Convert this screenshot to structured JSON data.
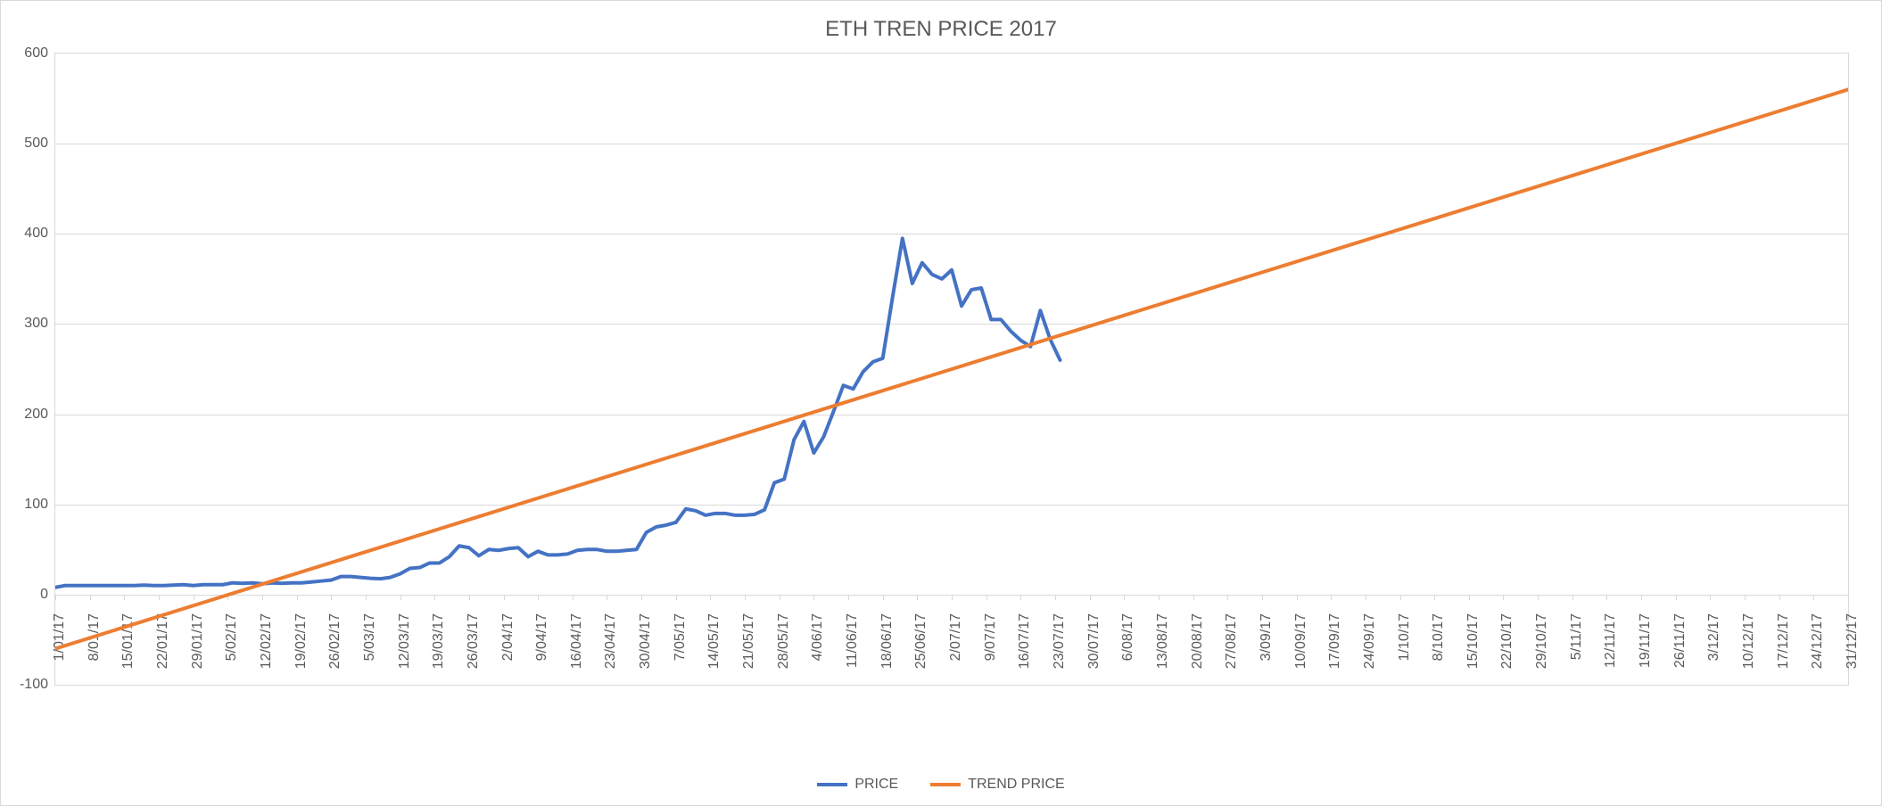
{
  "chart": {
    "type": "line",
    "title": "ETH TREN PRICE 2017",
    "title_fontsize": 24,
    "title_color": "#595959",
    "background_color": "#ffffff",
    "border_color": "#d9d9d9",
    "grid_color": "#d9d9d9",
    "axis_label_color": "#595959",
    "axis_label_fontsize": 16,
    "ylim": [
      -100,
      600
    ],
    "ytick_step": 100,
    "yticks": [
      -100,
      0,
      100,
      200,
      300,
      400,
      500,
      600
    ],
    "x_categories": [
      "1/01/17",
      "8/01/17",
      "15/01/17",
      "22/01/17",
      "29/01/17",
      "5/02/17",
      "12/02/17",
      "19/02/17",
      "26/02/17",
      "5/03/17",
      "12/03/17",
      "19/03/17",
      "26/03/17",
      "2/04/17",
      "9/04/17",
      "16/04/17",
      "23/04/17",
      "30/04/17",
      "7/05/17",
      "14/05/17",
      "21/05/17",
      "28/05/17",
      "4/06/17",
      "11/06/17",
      "18/06/17",
      "25/06/17",
      "2/07/17",
      "9/07/17",
      "16/07/17",
      "23/07/17",
      "30/07/17",
      "6/08/17",
      "13/08/17",
      "20/08/17",
      "27/08/17",
      "3/09/17",
      "10/09/17",
      "17/09/17",
      "24/09/17",
      "1/10/17",
      "8/10/17",
      "15/10/17",
      "22/10/17",
      "29/10/17",
      "5/11/17",
      "12/11/17",
      "19/11/17",
      "26/11/17",
      "3/12/17",
      "10/12/17",
      "17/12/17",
      "24/12/17",
      "31/12/17"
    ],
    "x_day_span": 364,
    "series": [
      {
        "name": "PRICE",
        "color": "#4472c4",
        "line_width": 4,
        "points": [
          [
            0,
            8
          ],
          [
            2,
            10
          ],
          [
            4,
            10
          ],
          [
            6,
            10
          ],
          [
            8,
            10
          ],
          [
            10,
            10
          ],
          [
            12,
            10
          ],
          [
            14,
            10
          ],
          [
            16,
            10
          ],
          [
            18,
            10.5
          ],
          [
            20,
            10
          ],
          [
            22,
            10
          ],
          [
            24,
            10.5
          ],
          [
            26,
            11
          ],
          [
            28,
            10
          ],
          [
            30,
            11
          ],
          [
            32,
            11
          ],
          [
            34,
            11
          ],
          [
            36,
            13
          ],
          [
            38,
            12.5
          ],
          [
            40,
            13
          ],
          [
            42,
            12
          ],
          [
            44,
            13
          ],
          [
            46,
            12.5
          ],
          [
            48,
            13
          ],
          [
            50,
            13
          ],
          [
            52,
            14
          ],
          [
            54,
            15
          ],
          [
            56,
            16
          ],
          [
            58,
            20
          ],
          [
            60,
            20
          ],
          [
            62,
            19
          ],
          [
            64,
            18
          ],
          [
            66,
            17.5
          ],
          [
            68,
            19
          ],
          [
            70,
            23
          ],
          [
            72,
            29
          ],
          [
            74,
            30
          ],
          [
            76,
            35
          ],
          [
            78,
            35
          ],
          [
            80,
            42
          ],
          [
            82,
            54
          ],
          [
            84,
            52
          ],
          [
            86,
            43
          ],
          [
            88,
            50
          ],
          [
            90,
            49
          ],
          [
            92,
            51
          ],
          [
            94,
            52
          ],
          [
            96,
            42
          ],
          [
            98,
            48
          ],
          [
            100,
            44
          ],
          [
            102,
            44
          ],
          [
            104,
            45
          ],
          [
            106,
            49
          ],
          [
            108,
            50
          ],
          [
            110,
            50
          ],
          [
            112,
            48
          ],
          [
            114,
            48
          ],
          [
            116,
            49
          ],
          [
            118,
            50
          ],
          [
            120,
            69
          ],
          [
            122,
            75
          ],
          [
            124,
            77
          ],
          [
            126,
            80
          ],
          [
            128,
            95
          ],
          [
            130,
            93
          ],
          [
            132,
            88
          ],
          [
            134,
            90
          ],
          [
            136,
            90
          ],
          [
            138,
            88
          ],
          [
            140,
            88
          ],
          [
            142,
            89
          ],
          [
            144,
            94
          ],
          [
            146,
            124
          ],
          [
            148,
            128
          ],
          [
            150,
            172
          ],
          [
            152,
            192
          ],
          [
            154,
            157
          ],
          [
            156,
            175
          ],
          [
            158,
            203
          ],
          [
            160,
            232
          ],
          [
            162,
            228
          ],
          [
            164,
            247
          ],
          [
            166,
            258
          ],
          [
            168,
            262
          ],
          [
            170,
            330
          ],
          [
            172,
            395
          ],
          [
            174,
            345
          ],
          [
            176,
            368
          ],
          [
            178,
            355
          ],
          [
            180,
            350
          ],
          [
            182,
            360
          ],
          [
            184,
            320
          ],
          [
            186,
            338
          ],
          [
            188,
            340
          ],
          [
            190,
            305
          ],
          [
            192,
            305
          ],
          [
            194,
            292
          ],
          [
            196,
            282
          ],
          [
            198,
            275
          ],
          [
            200,
            315
          ],
          [
            202,
            283
          ],
          [
            204,
            260
          ]
        ]
      },
      {
        "name": "TREND PRICE",
        "color": "#ed7d31",
        "line_width": 4,
        "points": [
          [
            0,
            -60
          ],
          [
            364,
            560
          ]
        ]
      }
    ],
    "legend": {
      "position": "bottom",
      "items": [
        {
          "label": "PRICE",
          "color": "#4472c4"
        },
        {
          "label": "TREND PRICE",
          "color": "#ed7d31"
        }
      ]
    }
  }
}
